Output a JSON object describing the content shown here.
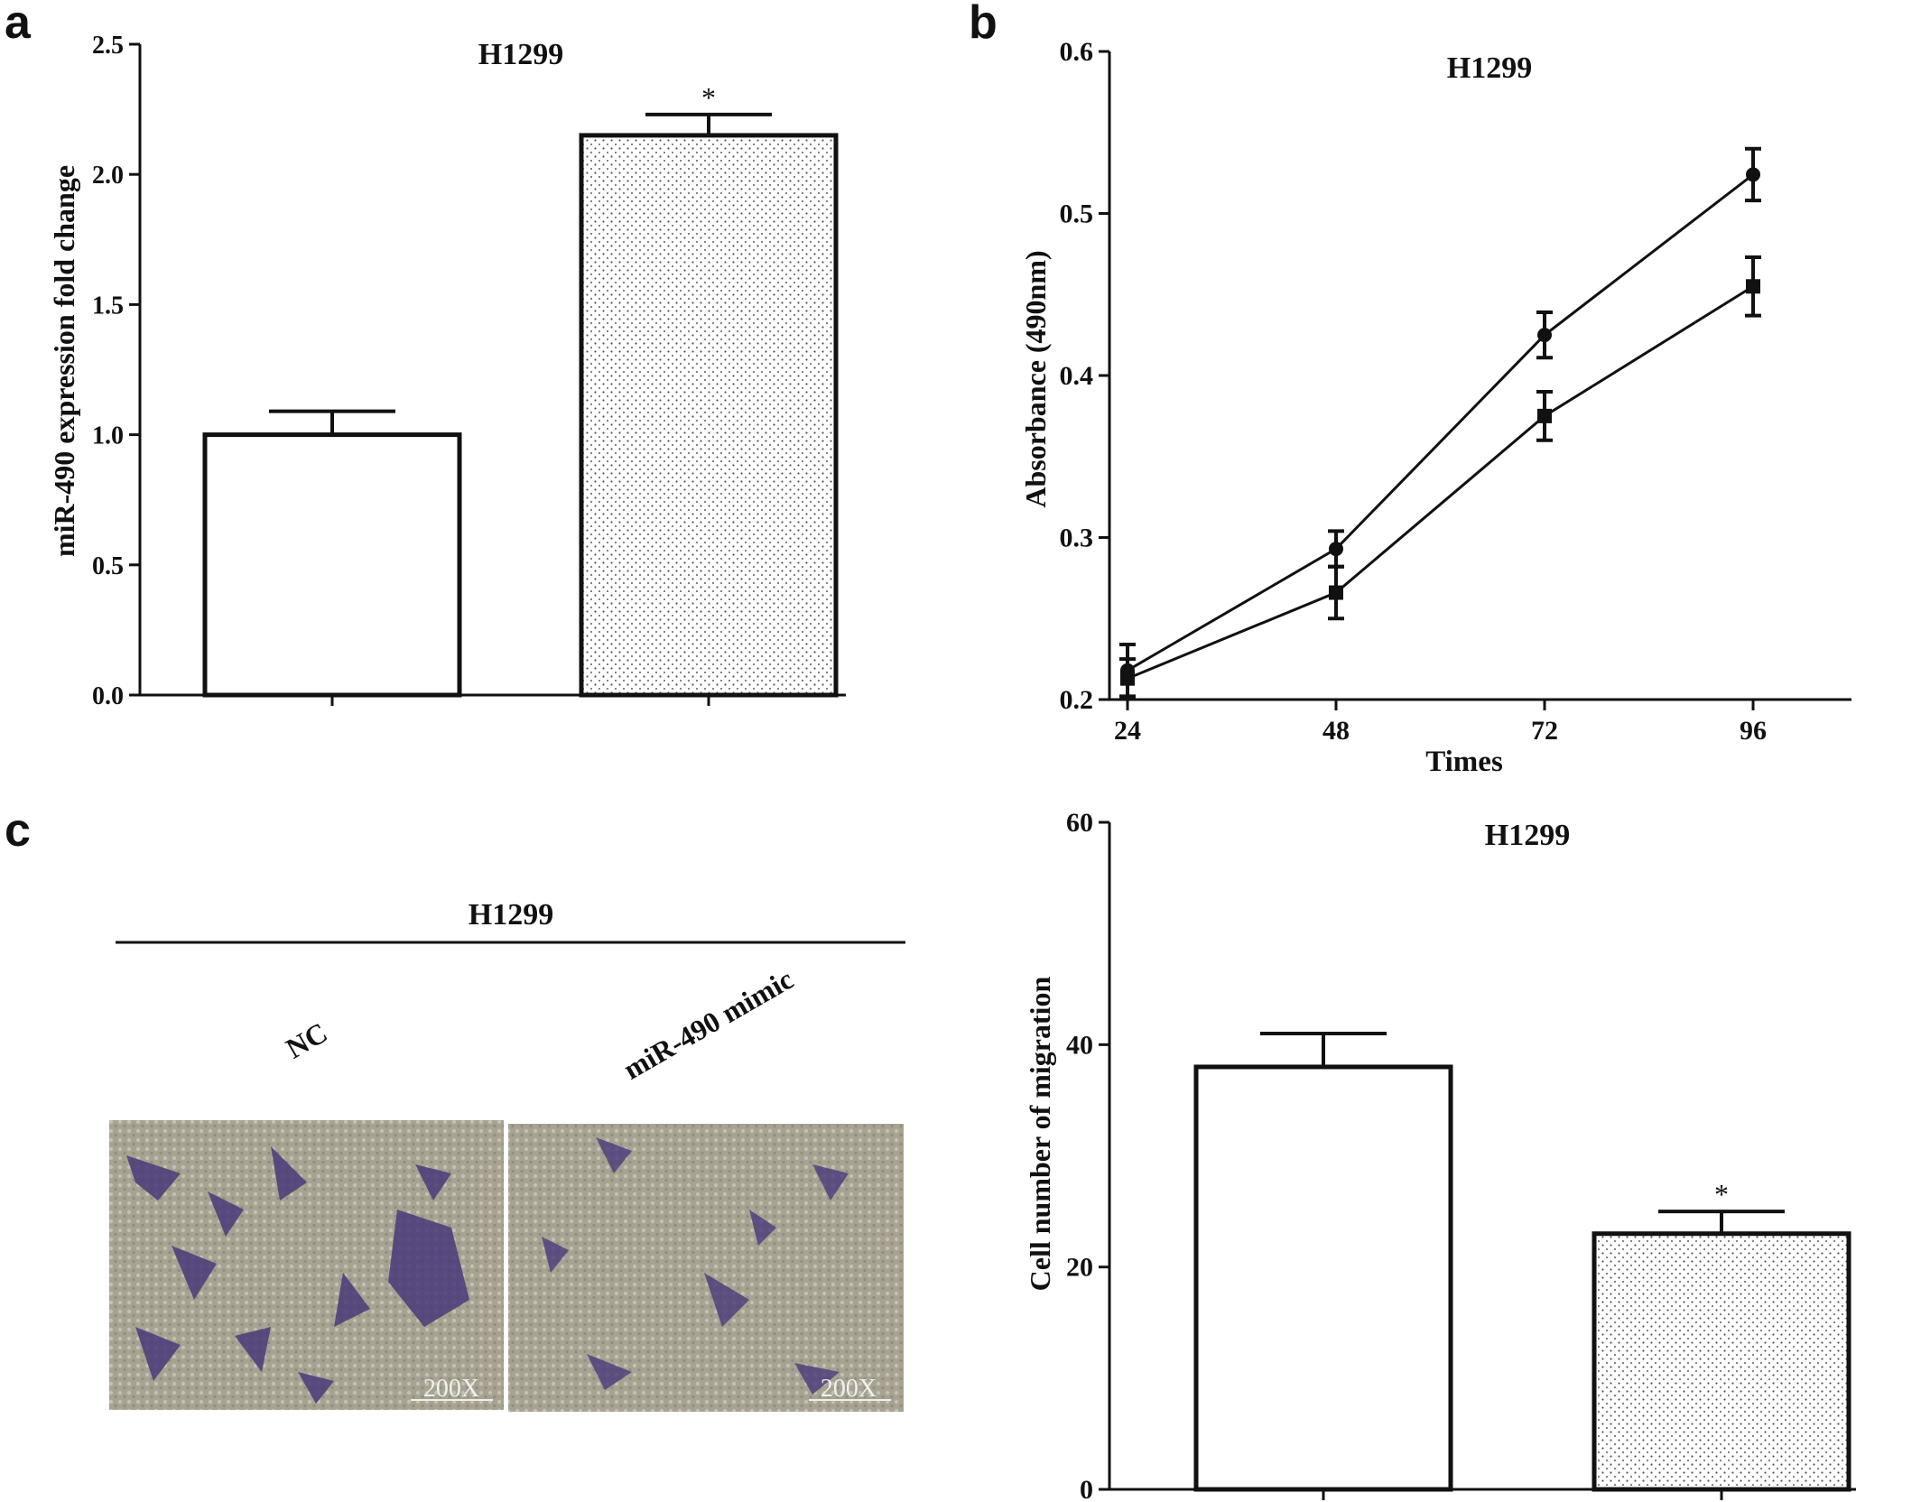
{
  "panels": {
    "a": {
      "letter": "a"
    },
    "b": {
      "letter": "b"
    },
    "c": {
      "letter": "c",
      "header": "H1299",
      "image_labels": [
        "NC",
        "miR-490 mimic"
      ],
      "scale_labels": [
        "200X",
        "200X"
      ]
    }
  },
  "chart_data": [
    {
      "id": "a",
      "type": "bar",
      "title": "H1299",
      "ylabel": "miR-490 expression fold change",
      "xlabel": "",
      "ylim": [
        0,
        2.5
      ],
      "yticks": [
        "0.0",
        "0.5",
        "1.0",
        "1.5",
        "2.0",
        "2.5"
      ],
      "categories": [
        "",
        ""
      ],
      "values": [
        1.0,
        2.15
      ],
      "errors": [
        0.09,
        0.08
      ],
      "annotations": [
        "",
        "*"
      ],
      "fills": [
        "plain",
        "dotted"
      ]
    },
    {
      "id": "b",
      "type": "line",
      "title": "H1299",
      "ylabel": "Absorbance (490nm)",
      "xlabel": "Times",
      "ylim": [
        0.2,
        0.6
      ],
      "yticks": [
        "0.2",
        "0.3",
        "0.4",
        "0.5",
        "0.6"
      ],
      "x": [
        24,
        48,
        72,
        96
      ],
      "xticks": [
        "24",
        "48",
        "72",
        "96"
      ],
      "series": [
        {
          "marker": "circle",
          "values": [
            0.218,
            0.293,
            0.425,
            0.524
          ],
          "errors": [
            0.016,
            0.011,
            0.014,
            0.016
          ]
        },
        {
          "marker": "square",
          "values": [
            0.213,
            0.266,
            0.375,
            0.455
          ],
          "errors": [
            0.012,
            0.016,
            0.015,
            0.018
          ]
        }
      ]
    },
    {
      "id": "c",
      "type": "bar",
      "title": "H1299",
      "ylabel": "Cell number of migration",
      "xlabel": "",
      "ylim": [
        0,
        60
      ],
      "yticks": [
        "0",
        "20",
        "40",
        "60"
      ],
      "categories": [
        "",
        ""
      ],
      "values": [
        38,
        23
      ],
      "errors": [
        3,
        2
      ],
      "annotations": [
        "",
        "*"
      ],
      "fills": [
        "plain",
        "dotted"
      ]
    }
  ]
}
